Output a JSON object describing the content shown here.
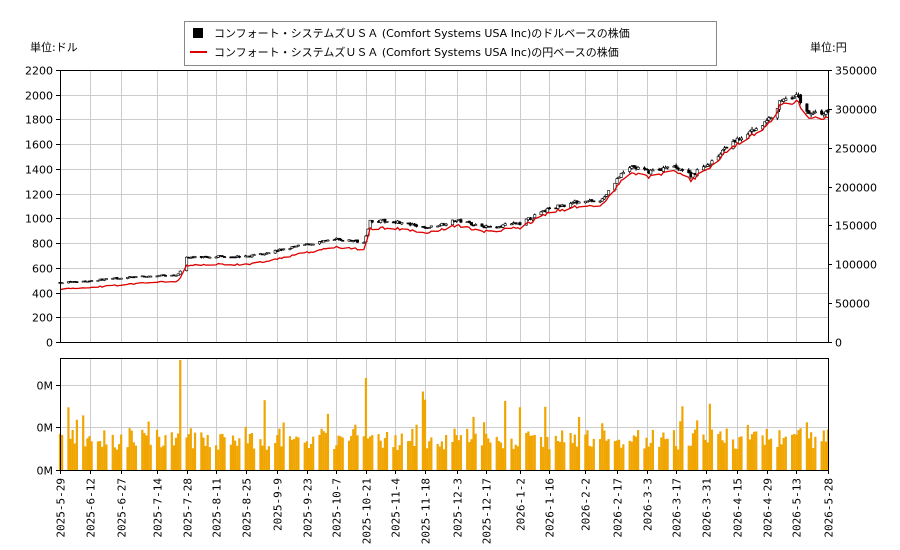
{
  "chart_data": {
    "type": "candlestick+line+bar",
    "legend": {
      "placement": "top-center",
      "items": [
        {
          "label": "コンフォート・システムズＵＳＡ (Comfort Systems USA Inc)のドルベースの株価",
          "color": "#000000",
          "marker": "square"
        },
        {
          "label": "コンフォート・システムズＵＳＡ (Comfort Systems USA Inc)の円ベースの株価",
          "color": "#dd0000",
          "marker": "line"
        }
      ]
    },
    "left_unit_label": "単位:ドル",
    "right_unit_label": "単位:円",
    "y_left": {
      "min": 0,
      "max": 2200,
      "ticks": [
        "0",
        "200",
        "400",
        "600",
        "800",
        "1000",
        "1200",
        "1400",
        "1600",
        "1800",
        "2000",
        "2200"
      ]
    },
    "y_right": {
      "min": 0,
      "max": 350000,
      "ticks": [
        "0",
        "50000",
        "100000",
        "150000",
        "200000",
        "250000",
        "300000",
        "350000"
      ]
    },
    "volume_axis": {
      "ticks": [
        "0M",
        "0M",
        "0M"
      ]
    },
    "grid": true,
    "x_start": "2025-05-29",
    "x_end": "2026-05-28",
    "x_ticks": [
      "2025-5-29",
      "2025-6-12",
      "2025-6-27",
      "2025-7-14",
      "2025-7-28",
      "2025-8-11",
      "2025-8-25",
      "2025-9-9",
      "2025-9-23",
      "2025-10-7",
      "2025-10-21",
      "2025-11-4",
      "2025-11-18",
      "2025-12-3",
      "2025-12-17",
      "2026-1-2",
      "2026-1-16",
      "2026-2-2",
      "2026-2-17",
      "2026-3-3",
      "2026-3-17",
      "2026-3-31",
      "2026-4-15",
      "2026-4-29",
      "2026-5-13",
      "2026-5-28"
    ],
    "usd_price_path": [
      [
        "2025-05-29",
        480
      ],
      [
        "2025-06-12",
        495
      ],
      [
        "2025-06-27",
        520
      ],
      [
        "2025-07-14",
        535
      ],
      [
        "2025-07-24",
        545
      ],
      [
        "2025-07-28",
        680
      ],
      [
        "2025-08-11",
        695
      ],
      [
        "2025-08-25",
        690
      ],
      [
        "2025-09-09",
        740
      ],
      [
        "2025-09-23",
        790
      ],
      [
        "2025-10-07",
        830
      ],
      [
        "2025-10-20",
        810
      ],
      [
        "2025-10-23",
        980
      ],
      [
        "2025-11-04",
        975
      ],
      [
        "2025-11-18",
        920
      ],
      [
        "2025-12-03",
        985
      ],
      [
        "2025-12-17",
        930
      ],
      [
        "2026-01-02",
        960
      ],
      [
        "2026-01-16",
        1080
      ],
      [
        "2026-02-02",
        1150
      ],
      [
        "2026-02-09",
        1130
      ],
      [
        "2026-02-17",
        1320
      ],
      [
        "2026-02-24",
        1420
      ],
      [
        "2026-03-03",
        1380
      ],
      [
        "2026-03-17",
        1420
      ],
      [
        "2026-03-24",
        1350
      ],
      [
        "2026-03-31",
        1420
      ],
      [
        "2026-04-15",
        1640
      ],
      [
        "2026-04-29",
        1780
      ],
      [
        "2026-05-06",
        1960
      ],
      [
        "2026-05-13",
        2000
      ],
      [
        "2026-05-18",
        1860
      ],
      [
        "2026-05-28",
        1850
      ]
    ],
    "jpy_price_path": [
      [
        "2025-05-29",
        69500
      ],
      [
        "2025-06-12",
        71500
      ],
      [
        "2025-06-27",
        75000
      ],
      [
        "2025-07-14",
        78500
      ],
      [
        "2025-07-24",
        80000
      ],
      [
        "2025-07-28",
        100000
      ],
      [
        "2025-08-11",
        102500
      ],
      [
        "2025-08-25",
        101500
      ],
      [
        "2025-09-09",
        109000
      ],
      [
        "2025-09-23",
        117500
      ],
      [
        "2025-10-07",
        124000
      ],
      [
        "2025-10-20",
        122000
      ],
      [
        "2025-10-23",
        149000
      ],
      [
        "2025-11-04",
        149500
      ],
      [
        "2025-11-18",
        142500
      ],
      [
        "2025-12-03",
        153000
      ],
      [
        "2025-12-17",
        145000
      ],
      [
        "2026-01-02",
        150000
      ],
      [
        "2026-01-16",
        170000
      ],
      [
        "2026-02-02",
        180000
      ],
      [
        "2026-02-09",
        177000
      ],
      [
        "2026-02-17",
        205000
      ],
      [
        "2026-02-24",
        222000
      ],
      [
        "2026-03-03",
        217000
      ],
      [
        "2026-03-17",
        225000
      ],
      [
        "2026-03-24",
        213000
      ],
      [
        "2026-03-31",
        225000
      ],
      [
        "2026-04-15",
        260000
      ],
      [
        "2026-04-29",
        283000
      ],
      [
        "2026-05-06",
        313000
      ],
      [
        "2026-05-13",
        317000
      ],
      [
        "2026-05-18",
        296000
      ],
      [
        "2026-05-28",
        293000
      ]
    ]
  }
}
